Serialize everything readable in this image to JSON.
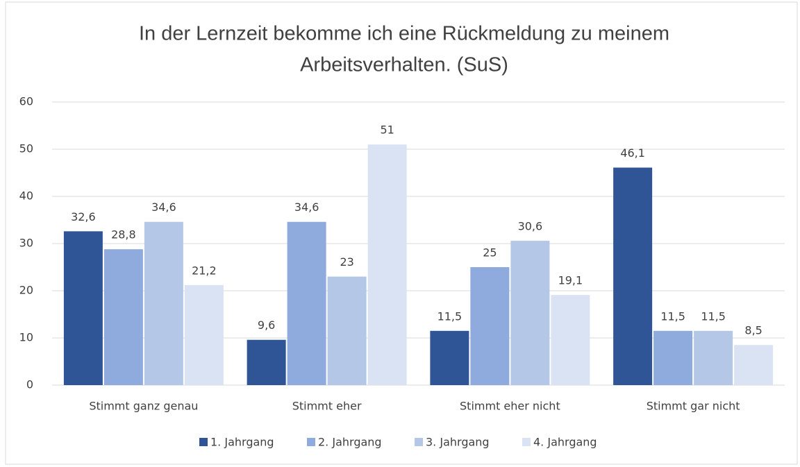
{
  "chart_data": {
    "type": "bar",
    "title": [
      "In der Lernzeit bekomme ich eine Rückmeldung zu meinem",
      "Arbeitsverhalten. (SuS)"
    ],
    "categories": [
      "Stimmt ganz genau",
      "Stimmt eher",
      "Stimmt eher nicht",
      "Stimmt gar nicht"
    ],
    "series": [
      {
        "name": "1. Jahrgang",
        "color": "#2f5597",
        "values": [
          32.6,
          9.6,
          11.5,
          46.1
        ],
        "value_labels": [
          "32,6",
          "9,6",
          "11,5",
          "46,1"
        ]
      },
      {
        "name": "2. Jahrgang",
        "color": "#8faadc",
        "values": [
          28.8,
          34.6,
          25,
          11.5
        ],
        "value_labels": [
          "28,8",
          "34,6",
          "25",
          "11,5"
        ]
      },
      {
        "name": "3. Jahrgang",
        "color": "#b4c7e7",
        "values": [
          34.6,
          23,
          30.6,
          11.5
        ],
        "value_labels": [
          "34,6",
          "23",
          "30,6",
          "11,5"
        ]
      },
      {
        "name": "4. Jahrgang",
        "color": "#dae3f3",
        "values": [
          21.2,
          51,
          19.1,
          8.5
        ],
        "value_labels": [
          "21,2",
          "51",
          "19,1",
          "8,5"
        ]
      }
    ],
    "ylim": [
      0,
      60
    ],
    "yticks": [
      0,
      10,
      20,
      30,
      40,
      50,
      60
    ],
    "grid": true,
    "legend": "bottom"
  }
}
